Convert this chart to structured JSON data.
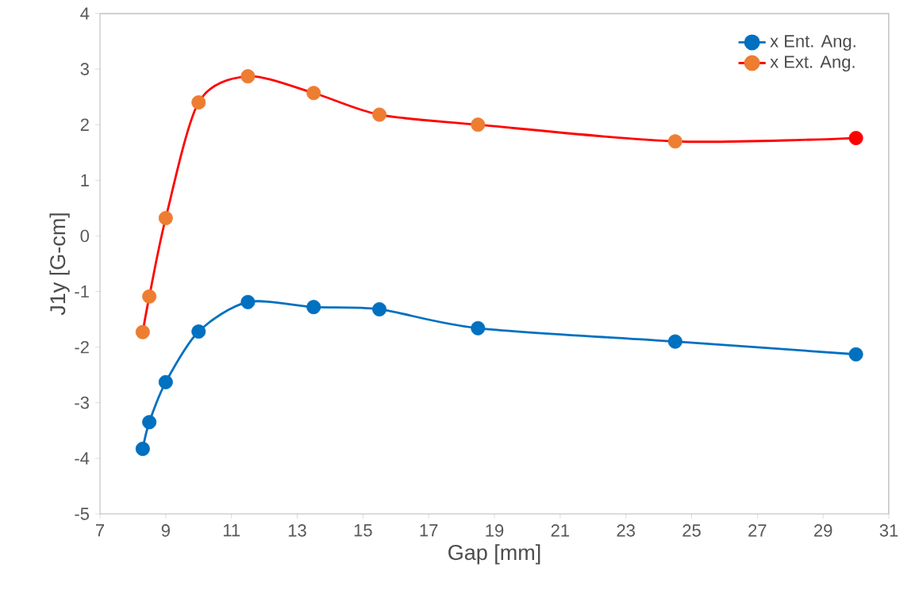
{
  "chart_data": {
    "type": "line",
    "xlabel": "Gap [mm]",
    "ylabel": "J1y [G-cm]",
    "x": [
      8.3,
      8.5,
      9,
      10,
      11.5,
      13.5,
      15.5,
      18.5,
      24.5,
      30
    ],
    "series": [
      {
        "name": "x Ent. Ang.",
        "color": "#0070c0",
        "values": [
          -3.83,
          -3.35,
          -2.63,
          -1.72,
          -1.19,
          -1.28,
          -1.32,
          -1.66,
          -1.9,
          -2.13
        ]
      },
      {
        "name": "x Ext. Ang.",
        "color": "#ff0000",
        "colors": [
          "#ed7d31",
          "#ed7d31",
          "#ed7d31",
          "#ed7d31",
          "#ed7d31",
          "#ed7d31",
          "#ed7d31",
          "#ed7d31",
          "#ed7d31",
          "#ff0000"
        ],
        "values": [
          -1.73,
          -1.09,
          0.32,
          2.4,
          2.87,
          2.57,
          2.18,
          2.0,
          1.7,
          1.76
        ]
      }
    ],
    "xlim": [
      7,
      31
    ],
    "ylim": [
      -5,
      4
    ],
    "xticks": [
      7,
      9,
      11,
      13,
      15,
      17,
      19,
      21,
      23,
      25,
      27,
      29,
      31
    ],
    "yticks": [
      -5,
      -4,
      -3,
      -2,
      -1,
      0,
      1,
      2,
      3,
      4
    ],
    "grid": false,
    "legend": "top right",
    "marker": "circle",
    "line_style": "solid"
  }
}
